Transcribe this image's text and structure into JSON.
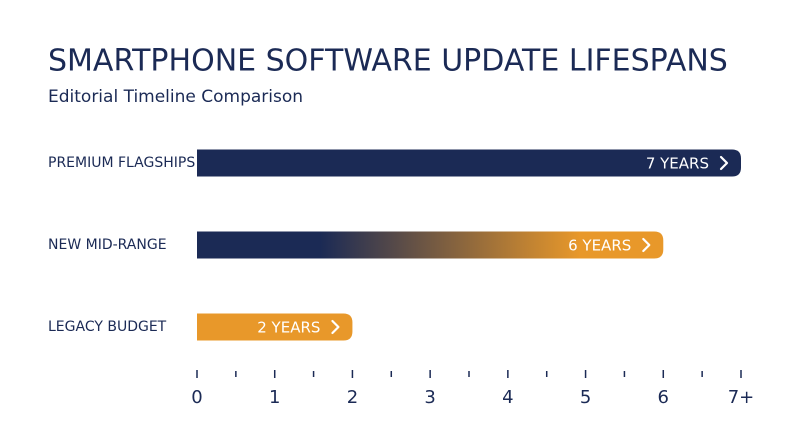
{
  "chart_data": {
    "type": "hbar",
    "title": "SMARTPHONE SOFTWARE UPDATE LIFESPANS",
    "subtitle": "Editorial Timeline Comparison",
    "categories": [
      "PREMIUM FLAGSHIPS",
      "NEW MID-RANGE",
      "LEGACY BUDGET"
    ],
    "values": [
      7,
      6,
      2
    ],
    "value_labels": [
      "7 YEARS",
      "6 YEARS",
      "2 YEARS"
    ],
    "colors": [
      "#1b2a55",
      [
        "#1b2a55",
        "#e8982a"
      ],
      "#e8982a"
    ],
    "xlim": [
      0,
      7
    ],
    "xticks": [
      0,
      1,
      2,
      3,
      4,
      5,
      6,
      {
        "value": 7,
        "label": "7+"
      }
    ],
    "xminorticks": [
      0.5,
      1.5,
      2.5,
      3.5,
      4.5,
      5.5,
      6.5
    ]
  }
}
